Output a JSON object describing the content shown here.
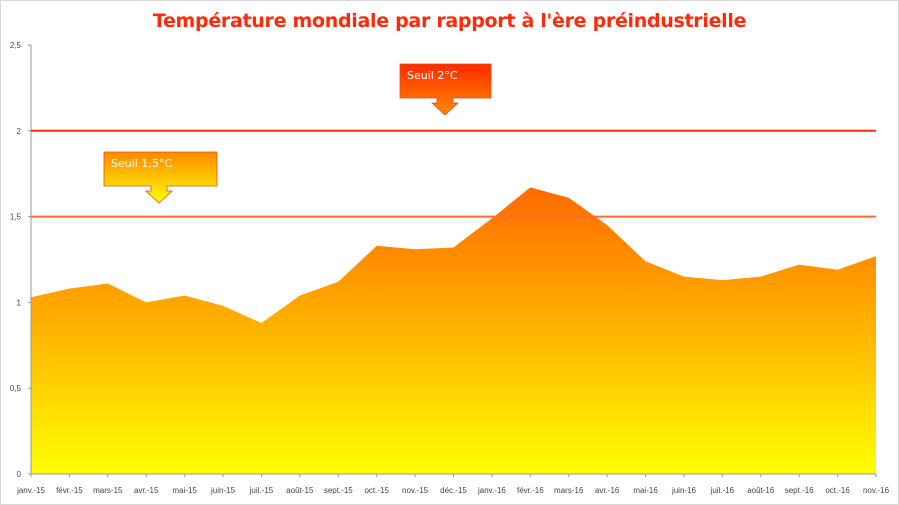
{
  "chart_data": {
    "type": "area",
    "title": "Température mondiale par rapport à l'ère préindustrielle",
    "xlabel": "",
    "ylabel": "",
    "categories": [
      "janv.-15",
      "févr.-15",
      "mars-15",
      "avr.-15",
      "mai-15",
      "juin-15",
      "juil.-15",
      "août-15",
      "sept.-15",
      "oct.-15",
      "nov.-15",
      "déc.-15",
      "janv.-16",
      "févr.-16",
      "mars-16",
      "avr.-16",
      "mai-16",
      "juin-16",
      "juil.-16",
      "août-16",
      "sept.-16",
      "oct.-16",
      "nov.-16"
    ],
    "values": [
      1.03,
      1.08,
      1.11,
      1.0,
      1.04,
      0.98,
      0.88,
      1.04,
      1.12,
      1.33,
      1.31,
      1.32,
      1.49,
      1.67,
      1.61,
      1.45,
      1.24,
      1.15,
      1.13,
      1.15,
      1.22,
      1.19,
      1.27
    ],
    "ylim": [
      0,
      2.5
    ],
    "yticks": [
      "0",
      "0,5",
      "1",
      "1,5",
      "2",
      "2,5"
    ],
    "yticks_values": [
      0,
      0.5,
      1,
      1.5,
      2,
      2.5
    ],
    "grid": false,
    "fill_gradient": {
      "top": "#ff6a00",
      "bottom": "#ffff00"
    },
    "reference_lines": [
      {
        "value": 2.0,
        "color": "#ff2a0a",
        "label": "Seuil 2°C"
      },
      {
        "value": 1.5,
        "color": "#ff6a2a",
        "label": "Seuil 1,5°C"
      }
    ]
  }
}
